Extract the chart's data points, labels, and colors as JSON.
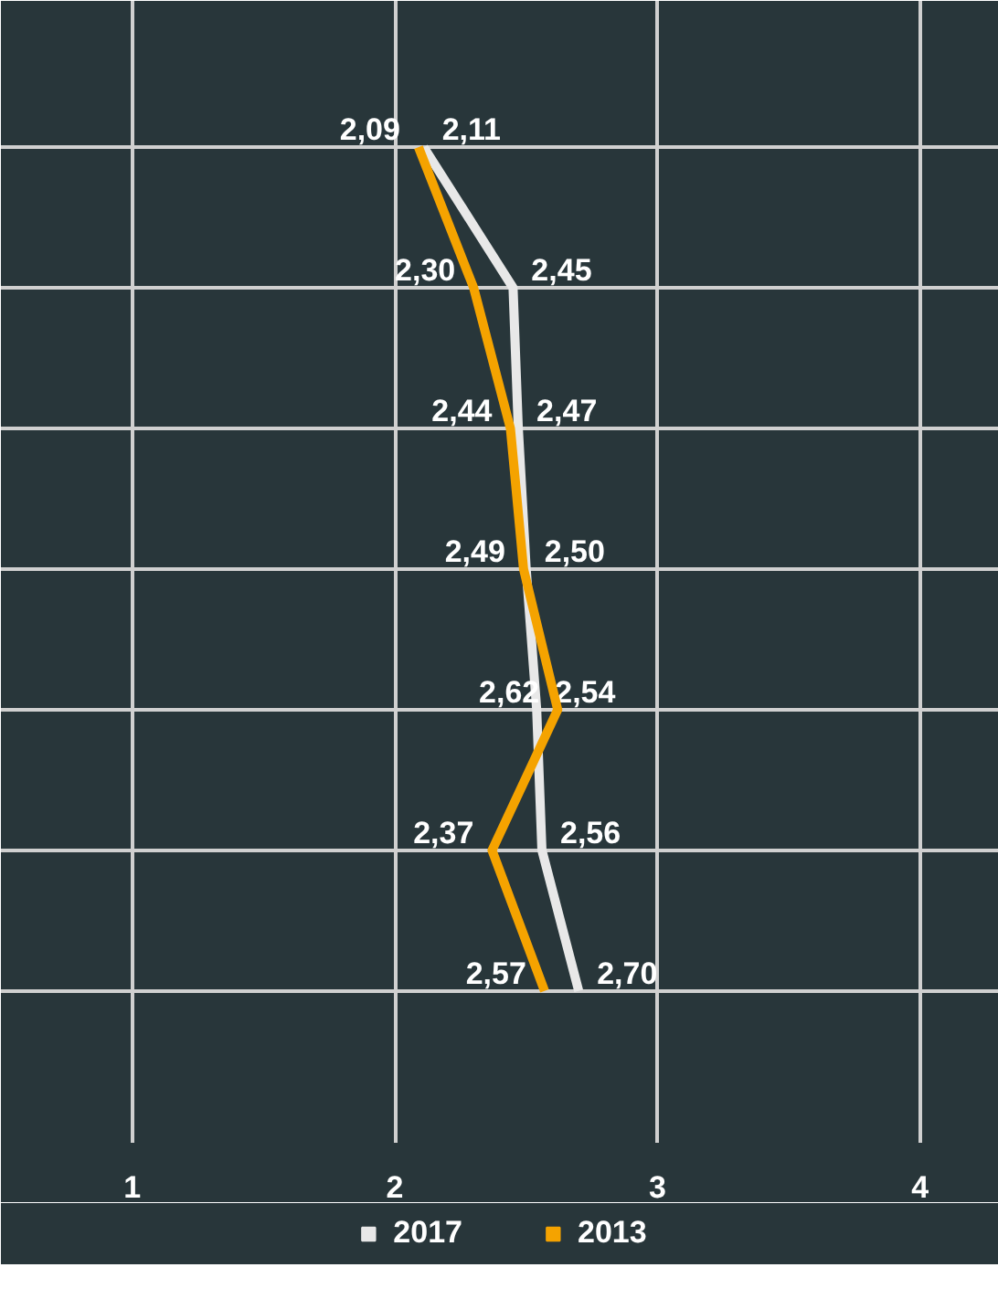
{
  "chart_data": {
    "type": "line",
    "orientation": "horizontal",
    "categories": [
      null,
      null,
      null,
      null,
      null,
      null,
      null
    ],
    "xlim": [
      0.5,
      4.3
    ],
    "xticks": [
      1,
      2,
      3,
      4
    ],
    "grid": true,
    "legend": "bottom",
    "tick_labels": "x",
    "data_labels": true,
    "marker": "none",
    "line_style": "solid",
    "series": [
      {
        "name": "2017",
        "color": "#e8e8e8",
        "values": [
          2.11,
          2.45,
          2.47,
          2.5,
          2.54,
          2.56,
          2.7
        ],
        "value_labels": [
          "2,11",
          "2,45",
          "2,47",
          "2,50",
          "2,54",
          "2,56",
          "2,70"
        ]
      },
      {
        "name": "2013",
        "color": "#f5a300",
        "values": [
          2.09,
          2.3,
          2.44,
          2.49,
          2.62,
          2.37,
          2.57
        ],
        "value_labels": [
          "2,09",
          "2,30",
          "2,44",
          "2,49",
          "2,62",
          "2,37",
          "2,57"
        ]
      }
    ]
  }
}
